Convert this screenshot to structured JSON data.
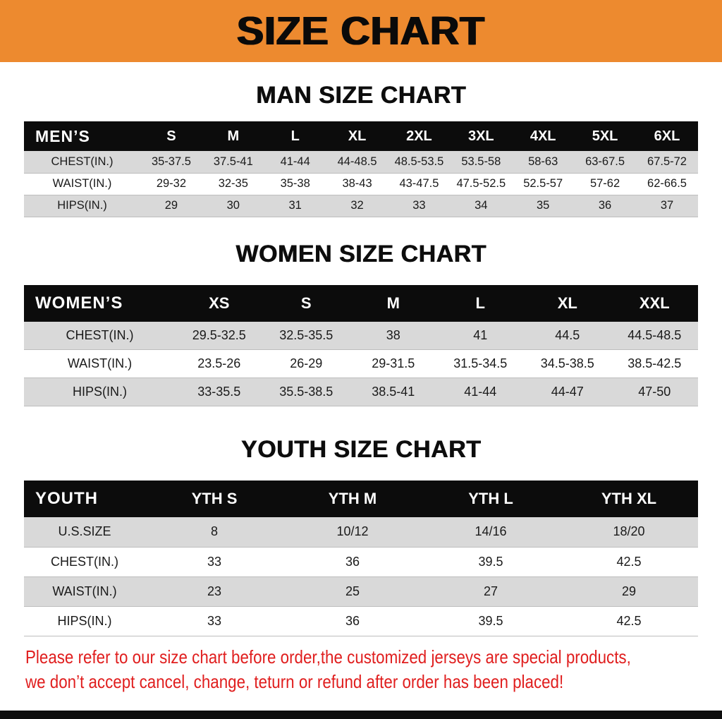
{
  "banner": {
    "title": "SIZE CHART"
  },
  "sections": [
    {
      "heading": "MAN SIZE CHART",
      "table": {
        "header": [
          "MEN’S",
          "S",
          "M",
          "L",
          "XL",
          "2XL",
          "3XL",
          "4XL",
          "5XL",
          "6XL"
        ],
        "rows": [
          [
            "CHEST(IN.)",
            "35-37.5",
            "37.5-41",
            "41-44",
            "44-48.5",
            "48.5-53.5",
            "53.5-58",
            "58-63",
            "63-67.5",
            "67.5-72"
          ],
          [
            "WAIST(IN.)",
            "29-32",
            "32-35",
            "35-38",
            "38-43",
            "43-47.5",
            "47.5-52.5",
            "52.5-57",
            "57-62",
            "62-66.5"
          ],
          [
            "HIPS(IN.)",
            "29",
            "30",
            "31",
            "32",
            "33",
            "34",
            "35",
            "36",
            "37"
          ]
        ]
      }
    },
    {
      "heading": "WOMEN SIZE CHART",
      "table": {
        "header": [
          "WOMEN’S",
          "XS",
          "S",
          "M",
          "L",
          "XL",
          "XXL"
        ],
        "rows": [
          [
            "CHEST(IN.)",
            "29.5-32.5",
            "32.5-35.5",
            "38",
            "41",
            "44.5",
            "44.5-48.5"
          ],
          [
            "WAIST(IN.)",
            "23.5-26",
            "26-29",
            "29-31.5",
            "31.5-34.5",
            "34.5-38.5",
            "38.5-42.5"
          ],
          [
            "HIPS(IN.)",
            "33-35.5",
            "35.5-38.5",
            "38.5-41",
            "41-44",
            "44-47",
            "47-50"
          ]
        ]
      }
    },
    {
      "heading": "YOUTH SIZE CHART",
      "table": {
        "header": [
          "YOUTH",
          "YTH S",
          "YTH M",
          "YTH L",
          "YTH XL"
        ],
        "rows": [
          [
            "U.S.SIZE",
            "8",
            "10/12",
            "14/16",
            "18/20"
          ],
          [
            "CHEST(IN.)",
            "33",
            "36",
            "39.5",
            "42.5"
          ],
          [
            "WAIST(IN.)",
            "23",
            "25",
            "27",
            "29"
          ],
          [
            "HIPS(IN.)",
            "33",
            "36",
            "39.5",
            "42.5"
          ]
        ]
      }
    }
  ],
  "footer": {
    "lines": [
      "Please refer to our size chart before order,the customized jerseys are special products,",
      "we don’t accept cancel, change, teturn or refund after order has been placed!"
    ]
  },
  "colors": {
    "banner_bg": "#ED8A2F",
    "header_row_bg": "#0C0C0C",
    "alt_row_bg": "#D9D9D9",
    "disclaimer_text": "#E01E1E"
  }
}
